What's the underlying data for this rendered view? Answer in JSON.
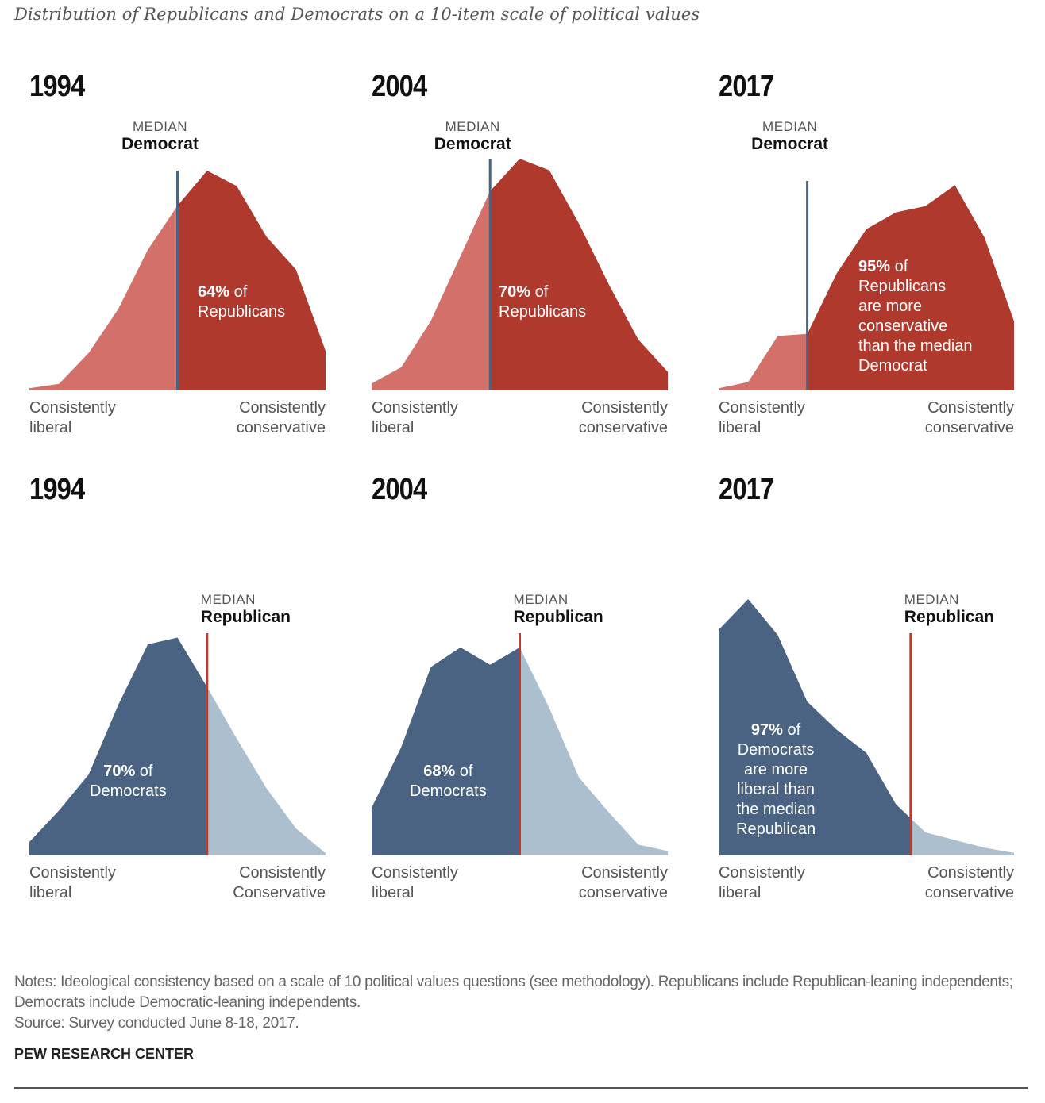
{
  "subtitle": "Distribution of Republicans and Democrats on a 10-item scale of political values",
  "colors": {
    "republican_dark": "#B0392E",
    "republican_light": "#D4706A",
    "democrat_dark": "#4A6383",
    "democrat_light": "#ABBFCF",
    "median_line_democrat": "#4A6383",
    "median_line_republican": "#C0392B"
  },
  "panels": [
    {
      "year": "1994",
      "median_small": "MEDIAN",
      "median_big": "Democrat",
      "ann_pct": "64%",
      "ann_rest": [
        " of",
        "Republicans"
      ],
      "axis_left": [
        "Consistently",
        "liberal"
      ],
      "axis_right": [
        "Consistently",
        "conservative"
      ]
    },
    {
      "year": "2004",
      "median_small": "MEDIAN",
      "median_big": "Democrat",
      "ann_pct": "70%",
      "ann_rest": [
        " of",
        "Republicans"
      ],
      "axis_left": [
        "Consistently",
        "liberal"
      ],
      "axis_right": [
        "Consistently",
        "conservative"
      ]
    },
    {
      "year": "2017",
      "median_small": "MEDIAN",
      "median_big": "Democrat",
      "ann_pct": "95%",
      "ann_rest": [
        " of",
        "Republicans",
        "are more",
        "conservative",
        "than the median",
        "Democrat"
      ],
      "axis_left": [
        "Consistently",
        "liberal"
      ],
      "axis_right": [
        "Consistently",
        "conservative"
      ]
    },
    {
      "year": "1994",
      "median_small": "MEDIAN",
      "median_big": "Republican",
      "ann_pct": "70%",
      "ann_rest": [
        " of",
        "Democrats"
      ],
      "axis_left": [
        "Consistently",
        "liberal"
      ],
      "axis_right": [
        "Consistently",
        "Conservative"
      ]
    },
    {
      "year": "2004",
      "median_small": "MEDIAN",
      "median_big": "Republican",
      "ann_pct": "68%",
      "ann_rest": [
        " of",
        "Democrats"
      ],
      "axis_left": [
        "Consistently",
        "liberal"
      ],
      "axis_right": [
        "Consistently",
        "conservative"
      ]
    },
    {
      "year": "2017",
      "median_small": "MEDIAN",
      "median_big": "Republican",
      "ann_pct": "97%",
      "ann_rest": [
        " of",
        "Democrats",
        "are more",
        "liberal than",
        "the median",
        "Republican"
      ],
      "axis_left": [
        "Consistently",
        "liberal"
      ],
      "axis_right": [
        "Consistently",
        "conservative"
      ]
    }
  ],
  "chart_data": [
    {
      "type": "area",
      "party": "Republicans",
      "year": "1994",
      "x": [
        0,
        1,
        2,
        3,
        4,
        5,
        6,
        7,
        8,
        9,
        10
      ],
      "y": [
        1,
        3,
        17,
        37,
        64,
        84,
        100,
        93,
        70,
        55,
        18
      ],
      "median_democrat_x": 5.0,
      "share_beyond_median": 64
    },
    {
      "type": "area",
      "party": "Republicans",
      "year": "2004",
      "x": [
        0,
        1,
        2,
        3,
        4,
        5,
        6,
        7,
        8,
        9,
        10
      ],
      "y": [
        3,
        10,
        30,
        58,
        86,
        100,
        95,
        72,
        46,
        22,
        8
      ],
      "median_democrat_x": 4.0,
      "share_beyond_median": 70
    },
    {
      "type": "area",
      "party": "Republicans",
      "year": "2017",
      "x": [
        0,
        1,
        2,
        3,
        4,
        5,
        6,
        7,
        8,
        9,
        10
      ],
      "y": [
        1,
        4,
        26,
        27,
        56,
        77,
        85,
        88,
        98,
        73,
        33
      ],
      "median_democrat_x": 3.0,
      "share_beyond_median": 95
    },
    {
      "type": "area",
      "party": "Democrats",
      "year": "1994",
      "x": [
        0,
        1,
        2,
        3,
        4,
        5,
        6,
        7,
        8,
        9,
        10
      ],
      "y": [
        6,
        20,
        36,
        67,
        94,
        97,
        75,
        52,
        30,
        12,
        1
      ],
      "median_republican_x": 6.0,
      "share_beyond_median": 70
    },
    {
      "type": "area",
      "party": "Democrats",
      "year": "2004",
      "x": [
        0,
        1,
        2,
        3,
        4,
        5,
        6,
        7,
        8,
        9,
        10
      ],
      "y": [
        22,
        50,
        87,
        96,
        88,
        96,
        68,
        36,
        20,
        5,
        2
      ],
      "median_republican_x": 5.0,
      "share_beyond_median": 68
    },
    {
      "type": "area",
      "party": "Democrats",
      "year": "2017",
      "x": [
        0,
        1,
        2,
        3,
        4,
        5,
        6,
        7,
        8,
        9,
        10
      ],
      "y": [
        88,
        100,
        86,
        60,
        49,
        40,
        20,
        9,
        6,
        3,
        1
      ],
      "median_republican_x": 6.5,
      "share_beyond_median": 97
    }
  ],
  "notes": [
    "Notes: Ideological consistency based on a scale of 10 political values questions (see methodology). Republicans include Republican-leaning independents; Democrats include Democratic-leaning independents.",
    "Source: Survey conducted June 8-18, 2017."
  ],
  "brand": "PEW RESEARCH CENTER"
}
